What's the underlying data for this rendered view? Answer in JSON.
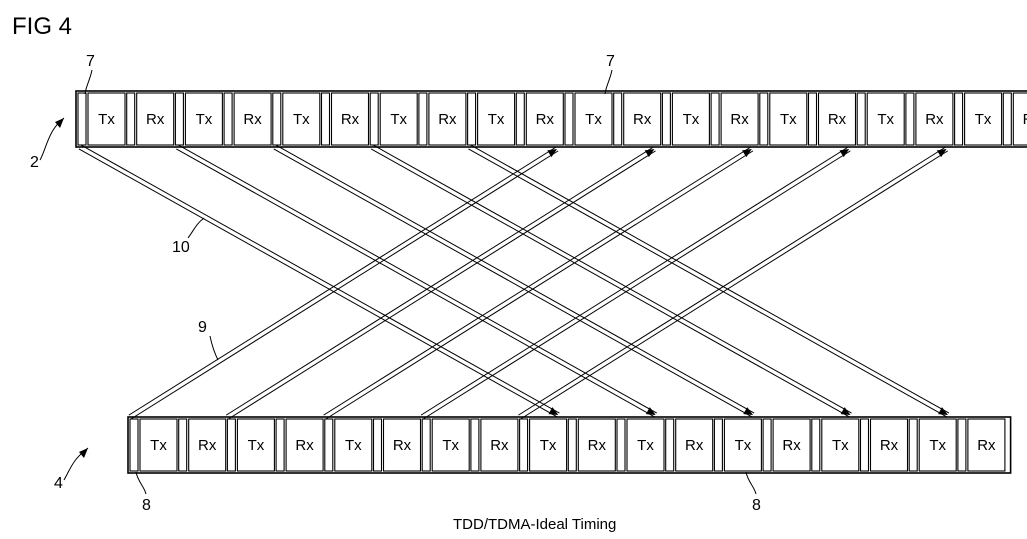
{
  "figure": {
    "title": "FIG 4",
    "caption": "TDD/TDMA-Ideal Timing"
  },
  "top_frame": {
    "ref_label": "2",
    "guard_ref_label": "7",
    "slots": [
      "Tx",
      "Rx",
      "Tx",
      "Rx",
      "Tx",
      "Rx",
      "Tx",
      "Rx",
      "Tx",
      "Rx",
      "Tx",
      "Rx",
      "Tx",
      "Rx",
      "Tx",
      "Rx",
      "Tx",
      "Rx",
      "Tx",
      "Rx"
    ]
  },
  "bottom_frame": {
    "ref_label": "4",
    "guard_ref_label": "8",
    "slots": [
      "Tx",
      "Rx",
      "Tx",
      "Rx",
      "Tx",
      "Rx",
      "Tx",
      "Rx",
      "Tx",
      "Rx",
      "Tx",
      "Rx",
      "Tx",
      "Rx",
      "Tx",
      "Rx",
      "Tx",
      "Rx"
    ]
  },
  "signal_paths": {
    "downlink_ref_label": "10",
    "uplink_ref_label": "9",
    "downlink_count": 5,
    "uplink_count": 5
  }
}
